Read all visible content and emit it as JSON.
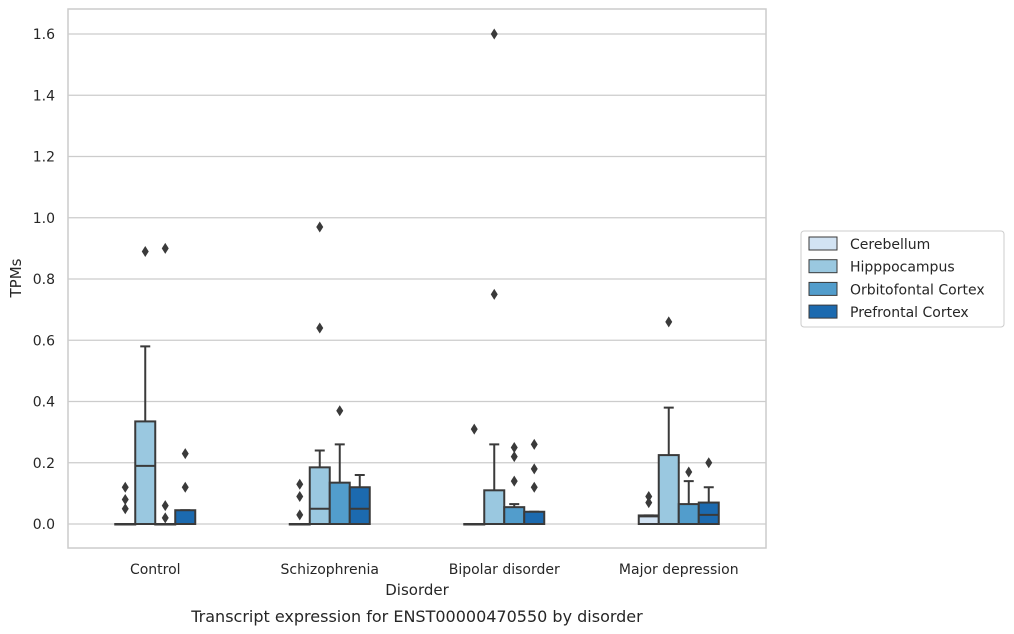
{
  "chart_data": {
    "type": "box",
    "caption": "Transcript expression for ENST00000470550 by disorder",
    "xlabel": "Disorder",
    "ylabel": "TPMs",
    "ylim": [
      -0.08,
      1.68
    ],
    "yticks": [
      0.0,
      0.2,
      0.4,
      0.6,
      0.8,
      1.0,
      1.2,
      1.4,
      1.6
    ],
    "ytick_labels": [
      "0.0",
      "0.2",
      "0.4",
      "0.6",
      "0.8",
      "1.0",
      "1.2",
      "1.4",
      "1.6"
    ],
    "categories": [
      "Control",
      "Schizophrenia",
      "Bipolar disorder",
      "Major depression"
    ],
    "grid": "horizontal",
    "legend_position": "right",
    "series": [
      {
        "name": "Cerebellum",
        "color": "#d2e3f3",
        "boxes": [
          {
            "whislo": 0,
            "q1": 0,
            "med": 0,
            "q3": 0,
            "whishi": 0,
            "fliers": [
              0.05,
              0.08,
              0.12
            ]
          },
          {
            "whislo": 0,
            "q1": 0,
            "med": 0,
            "q3": 0,
            "whishi": 0,
            "fliers": [
              0.03,
              0.09,
              0.13
            ]
          },
          {
            "whislo": 0,
            "q1": 0,
            "med": 0,
            "q3": 0,
            "whishi": 0,
            "fliers": [
              0.31
            ]
          },
          {
            "whislo": 0,
            "q1": 0,
            "med": 0.025,
            "q3": 0.028,
            "whishi": 0.028,
            "fliers": [
              0.07,
              0.09
            ]
          }
        ]
      },
      {
        "name": "Hipppocampus",
        "color": "#9ac8e0",
        "boxes": [
          {
            "whislo": 0,
            "q1": 0,
            "med": 0.19,
            "q3": 0.335,
            "whishi": 0.58,
            "fliers": [
              0.89
            ]
          },
          {
            "whislo": 0,
            "q1": 0,
            "med": 0.05,
            "q3": 0.185,
            "whishi": 0.24,
            "fliers": [
              0.64,
              0.97
            ]
          },
          {
            "whislo": 0,
            "q1": 0,
            "med": 0,
            "q3": 0.11,
            "whishi": 0.26,
            "fliers": [
              0.75,
              1.6
            ]
          },
          {
            "whislo": 0,
            "q1": 0,
            "med": 0,
            "q3": 0.225,
            "whishi": 0.38,
            "fliers": [
              0.66
            ]
          }
        ]
      },
      {
        "name": "Orbitofontal Cortex",
        "color": "#529dcc",
        "boxes": [
          {
            "whislo": 0,
            "q1": 0,
            "med": 0,
            "q3": 0,
            "whishi": 0,
            "fliers": [
              0.02,
              0.06,
              0.9
            ]
          },
          {
            "whislo": 0,
            "q1": 0,
            "med": 0,
            "q3": 0.135,
            "whishi": 0.26,
            "fliers": [
              0.37
            ]
          },
          {
            "whislo": 0,
            "q1": 0,
            "med": 0,
            "q3": 0.055,
            "whishi": 0.065,
            "fliers": [
              0.14,
              0.22,
              0.25
            ]
          },
          {
            "whislo": 0,
            "q1": 0,
            "med": 0,
            "q3": 0.065,
            "whishi": 0.14,
            "fliers": [
              0.17
            ]
          }
        ]
      },
      {
        "name": "Prefrontal Cortex",
        "color": "#1c6aaf",
        "boxes": [
          {
            "whislo": 0,
            "q1": 0,
            "med": 0,
            "q3": 0.045,
            "whishi": 0.045,
            "fliers": [
              0.12,
              0.23
            ]
          },
          {
            "whislo": 0,
            "q1": 0,
            "med": 0.05,
            "q3": 0.12,
            "whishi": 0.16,
            "fliers": []
          },
          {
            "whislo": 0,
            "q1": 0,
            "med": 0,
            "q3": 0.04,
            "whishi": 0.04,
            "fliers": [
              0.12,
              0.18,
              0.26
            ]
          },
          {
            "whislo": 0,
            "q1": 0,
            "med": 0.03,
            "q3": 0.07,
            "whishi": 0.12,
            "fliers": [
              0.2
            ]
          }
        ]
      }
    ]
  }
}
